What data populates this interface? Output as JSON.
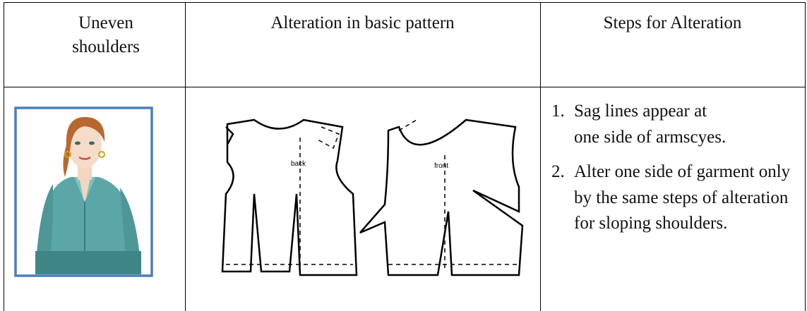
{
  "table": {
    "header": [
      "Uneven shoulders",
      "Alteration in basic pattern",
      "Steps for Alteration"
    ],
    "pattern_labels": [
      "back",
      "front"
    ],
    "steps": [
      {
        "marker": "1.",
        "text": "Sag lines appear at one side of armscyes."
      },
      {
        "marker": "2.",
        "text": "Alter one side of garment only by the same steps of alteration for sloping shoulders."
      }
    ]
  }
}
